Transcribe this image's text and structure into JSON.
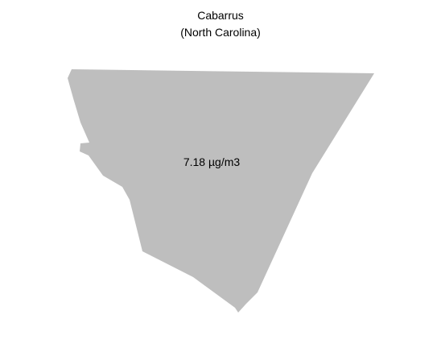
{
  "map": {
    "county": "Cabarrus",
    "state": "(North Carolina)",
    "value_label": "7.18 µg/m3",
    "fill_color": "#bebebe",
    "text_color": "#000000"
  }
}
